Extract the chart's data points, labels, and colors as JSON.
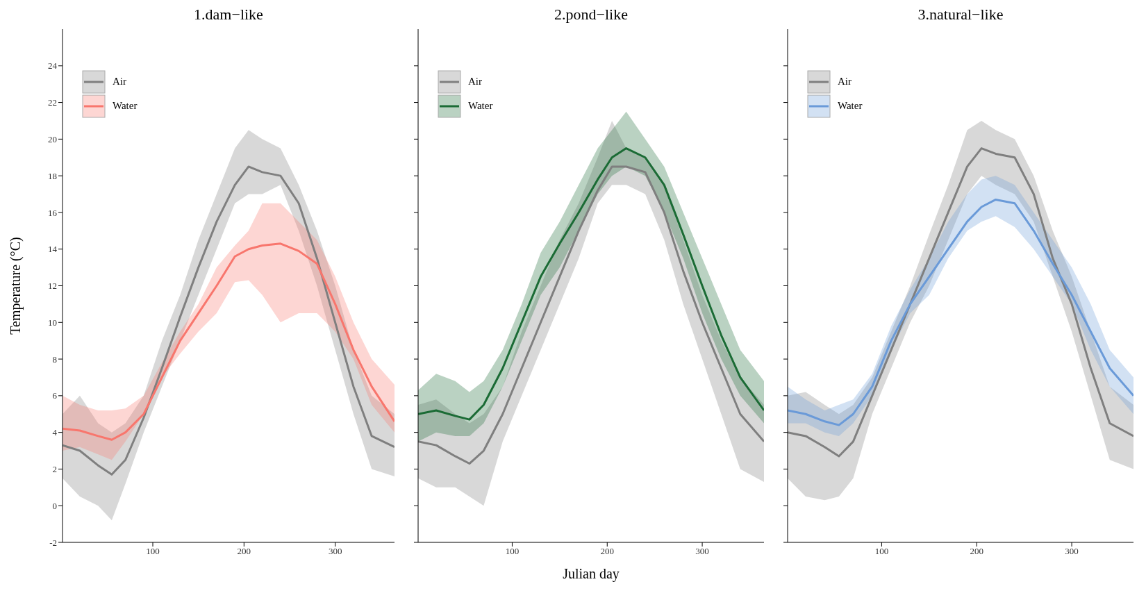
{
  "chart_data": [
    {
      "type": "line",
      "title": "1.dam−like",
      "ylabel": "Temperature (°C)",
      "x": [
        1,
        20,
        40,
        55,
        70,
        90,
        110,
        130,
        150,
        170,
        190,
        205,
        220,
        240,
        260,
        280,
        300,
        320,
        340,
        365
      ],
      "xlim": [
        1,
        365
      ],
      "xticks": [
        100,
        200,
        300
      ],
      "ylim": [
        -2,
        26
      ],
      "yticks": [
        -2,
        0,
        2,
        4,
        6,
        8,
        10,
        12,
        14,
        16,
        18,
        20,
        22,
        24
      ],
      "legend": "top left",
      "series": [
        {
          "name": "Air",
          "color": "#7f7f7f",
          "values": [
            3.3,
            3.0,
            2.2,
            1.7,
            2.5,
            4.8,
            7.5,
            10.3,
            13.0,
            15.5,
            17.5,
            18.5,
            18.2,
            18.0,
            16.5,
            13.5,
            10,
            6.5,
            3.8,
            3.2
          ],
          "lower": [
            1.5,
            0.5,
            0,
            -0.8,
            1.2,
            4,
            6.5,
            9,
            11.5,
            14,
            16.5,
            17,
            17,
            17.5,
            15,
            12,
            8.5,
            5,
            2,
            1.6
          ],
          "upper": [
            5,
            6,
            4.5,
            4,
            4.5,
            6,
            9,
            11.5,
            14.5,
            17,
            19.5,
            20.5,
            20,
            19.5,
            17.5,
            15,
            12,
            8.5,
            6,
            5
          ]
        },
        {
          "name": "Water",
          "color": "#f8766d",
          "values": [
            4.2,
            4.1,
            3.8,
            3.6,
            4.0,
            5.0,
            7.0,
            9.0,
            10.5,
            12.0,
            13.6,
            14.0,
            14.2,
            14.3,
            13.9,
            13.2,
            11.0,
            8.5,
            6.5,
            4.6
          ],
          "lower": [
            3,
            3.2,
            2.8,
            2.5,
            3.5,
            5,
            7,
            8.3,
            9.5,
            10.5,
            12.2,
            12.3,
            11.5,
            10,
            10.5,
            10.5,
            9.5,
            8,
            5.5,
            4
          ],
          "upper": [
            6,
            5.5,
            5.2,
            5.2,
            5.3,
            6,
            7.8,
            9.5,
            11,
            13,
            14.2,
            15,
            16.5,
            16.5,
            15.5,
            14.5,
            12.5,
            10,
            8,
            6.6
          ]
        }
      ]
    },
    {
      "type": "line",
      "title": "2.pond−like",
      "xlabel": "Julian day",
      "x": [
        1,
        20,
        40,
        55,
        70,
        90,
        110,
        130,
        150,
        170,
        190,
        205,
        220,
        240,
        260,
        280,
        300,
        320,
        340,
        365
      ],
      "xlim": [
        1,
        365
      ],
      "xticks": [
        100,
        200,
        300
      ],
      "ylim": [
        -2,
        26
      ],
      "yticks": [
        -2,
        0,
        2,
        4,
        6,
        8,
        10,
        12,
        14,
        16,
        18,
        20,
        22,
        24
      ],
      "tick_labels": "x",
      "legend": "top left",
      "series": [
        {
          "name": "Air",
          "color": "#7f7f7f",
          "values": [
            3.5,
            3.3,
            2.7,
            2.3,
            3.0,
            5,
            7.5,
            10,
            12.5,
            15,
            17.2,
            18.5,
            18.5,
            18.2,
            16,
            12.8,
            10,
            7.5,
            5,
            3.5
          ],
          "lower": [
            1.5,
            1,
            1,
            0.5,
            0,
            3.5,
            6,
            8.5,
            11,
            13.5,
            16.5,
            17.5,
            17.5,
            17,
            14.5,
            11,
            8,
            5,
            2,
            1.3
          ],
          "upper": [
            5.5,
            5.8,
            5,
            4.5,
            5,
            6.5,
            9.5,
            12,
            14.5,
            16.5,
            19,
            21,
            19.5,
            19,
            17.5,
            14.5,
            11.5,
            9,
            7,
            5.5
          ]
        },
        {
          "name": "Water",
          "color": "#1b6b35",
          "values": [
            5.0,
            5.2,
            4.9,
            4.7,
            5.5,
            7.5,
            10,
            12.5,
            14.3,
            16,
            17.8,
            19,
            19.5,
            19,
            17.5,
            14.8,
            12,
            9.3,
            7,
            5.2
          ],
          "lower": [
            3.5,
            4,
            3.8,
            3.8,
            4.5,
            6.5,
            9,
            11.5,
            13,
            15,
            17,
            18,
            18.5,
            18,
            16,
            13.5,
            10.5,
            8,
            6,
            4.5
          ],
          "upper": [
            6.3,
            7.2,
            6.8,
            6.2,
            6.8,
            8.5,
            11,
            13.8,
            15.5,
            17.5,
            19.5,
            20.5,
            21.5,
            20,
            18.5,
            16,
            13.5,
            11,
            8.5,
            6.8
          ]
        }
      ]
    },
    {
      "type": "line",
      "title": "3.natural−like",
      "x": [
        1,
        20,
        40,
        55,
        70,
        90,
        110,
        130,
        150,
        170,
        190,
        205,
        220,
        240,
        260,
        280,
        300,
        320,
        340,
        365
      ],
      "xlim": [
        1,
        365
      ],
      "xticks": [
        100,
        200,
        300
      ],
      "ylim": [
        -2,
        26
      ],
      "yticks": [
        -2,
        0,
        2,
        4,
        6,
        8,
        10,
        12,
        14,
        16,
        18,
        20,
        22,
        24
      ],
      "tick_labels": "x",
      "legend": "top left",
      "series": [
        {
          "name": "Air",
          "color": "#7f7f7f",
          "values": [
            4.0,
            3.8,
            3.2,
            2.7,
            3.5,
            6,
            8.5,
            11,
            13.5,
            16,
            18.5,
            19.5,
            19.2,
            19,
            17,
            13.5,
            11,
            7.5,
            4.5,
            3.8
          ],
          "lower": [
            1.5,
            0.5,
            0.3,
            0.5,
            1.5,
            5,
            7.5,
            10,
            12,
            14.5,
            17,
            18,
            17.5,
            17,
            15.5,
            12.5,
            9.5,
            6,
            2.5,
            2
          ],
          "upper": [
            6,
            6.2,
            5.5,
            5,
            5.5,
            7,
            9.5,
            12,
            14.8,
            17.5,
            20.5,
            21,
            20.5,
            20,
            18,
            15,
            12.5,
            9.5,
            6.5,
            5.5
          ]
        },
        {
          "name": "Water",
          "color": "#6a9ad8",
          "values": [
            5.2,
            5.0,
            4.6,
            4.4,
            5.0,
            6.5,
            9,
            11,
            12.5,
            14,
            15.5,
            16.3,
            16.7,
            16.5,
            15,
            13.2,
            11.5,
            9.5,
            7.5,
            6
          ],
          "lower": [
            4.5,
            4.5,
            4,
            3.8,
            4.5,
            6,
            8.5,
            10.5,
            11.5,
            13.5,
            15,
            15.5,
            15.8,
            15.2,
            14,
            12.5,
            11,
            8.5,
            6.5,
            5
          ],
          "upper": [
            6.5,
            5.8,
            5.2,
            5.5,
            5.8,
            7.2,
            9.8,
            11.8,
            13.5,
            15.5,
            17,
            17.8,
            18,
            17.5,
            16,
            14.5,
            13,
            11,
            8.5,
            7
          ]
        }
      ]
    }
  ]
}
